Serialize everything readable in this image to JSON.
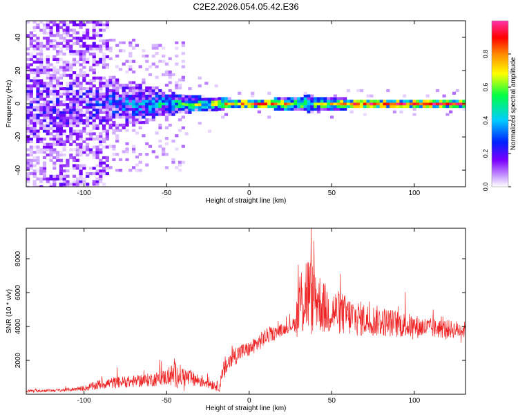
{
  "figure": {
    "title": "C2E2.2026.054.05.42.E36"
  },
  "chart_data": [
    {
      "type": "heatmap",
      "xlabel": "Height of straight line (km)",
      "ylabel": "Frequency (Hz)",
      "xlim": [
        -135,
        131
      ],
      "ylim": [
        -50,
        50
      ],
      "xticks": [
        -100,
        -50,
        0,
        50,
        100
      ],
      "yticks": [
        -40,
        -20,
        0,
        20,
        40
      ],
      "colorbar": {
        "label": "Normalized spectral amplitude",
        "range": [
          0,
          1
        ],
        "ticks": [
          0.0,
          0.2,
          0.4,
          0.6,
          0.8
        ],
        "tick_labels": [
          "0.0",
          "0.2",
          "0.4",
          "0.6",
          "0.8"
        ],
        "colormap": [
          "#ffffff",
          "#cda3ff",
          "#7b00ff",
          "#0022ff",
          "#00ccff",
          "#00ff44",
          "#ffff00",
          "#ff8800",
          "#ff0000",
          "#ff33aa"
        ]
      },
      "description_points": [
        {
          "x": -130,
          "band_hz": 50,
          "amplitude": 0.15
        },
        {
          "x": -100,
          "band_hz": 20,
          "amplitude": 0.2
        },
        {
          "x": -50,
          "band_hz": 6,
          "amplitude": 0.45
        },
        {
          "x": -25,
          "band_hz": 3,
          "amplitude": 0.6
        },
        {
          "x": 0,
          "band_hz": 1,
          "amplitude": 0.85
        },
        {
          "x": 35,
          "band_hz": 4,
          "amplitude": 0.55
        },
        {
          "x": 60,
          "band_hz": 2,
          "amplitude": 0.8
        },
        {
          "x": 100,
          "band_hz": 1,
          "amplitude": 0.9
        },
        {
          "x": 131,
          "band_hz": 1,
          "amplitude": 0.9
        }
      ],
      "grid": false
    },
    {
      "type": "line",
      "xlabel": "Height of straight line (km)",
      "ylabel": "SNR (10 * v/v)",
      "xlim": [
        -135,
        131
      ],
      "ylim": [
        0,
        9800
      ],
      "xticks": [
        -100,
        -50,
        0,
        50,
        100
      ],
      "yticks": [
        2000,
        4000,
        6000,
        8000
      ],
      "color": "#ee2222",
      "series": [
        {
          "x": [
            -135,
            -120,
            -110,
            -100,
            -95,
            -90,
            -80,
            -70,
            -60,
            -50,
            -45,
            -40,
            -35,
            -30,
            -25,
            -20,
            -18,
            -15,
            -10,
            -5,
            0,
            5,
            10,
            15,
            20,
            25,
            28,
            30,
            33,
            35,
            38,
            40,
            45,
            50,
            55,
            60,
            70,
            80,
            90,
            100,
            110,
            120,
            131
          ],
          "values": [
            200,
            220,
            260,
            350,
            450,
            600,
            700,
            750,
            850,
            1000,
            1150,
            1050,
            900,
            800,
            700,
            500,
            450,
            1500,
            2200,
            2500,
            2650,
            3000,
            3400,
            3600,
            3800,
            4000,
            4200,
            5200,
            5700,
            6100,
            5600,
            5800,
            5100,
            4900,
            4800,
            4600,
            4400,
            4300,
            4150,
            4000,
            3900,
            3850,
            3800
          ],
          "noise": [
            80,
            90,
            100,
            150,
            250,
            300,
            350,
            350,
            400,
            500,
            800,
            600,
            500,
            400,
            350,
            300,
            300,
            700,
            600,
            500,
            450,
            500,
            500,
            400,
            350,
            300,
            500,
            2200,
            2400,
            2600,
            2200,
            2000,
            1600,
            1400,
            1300,
            1200,
            1000,
            900,
            800,
            700,
            600,
            550,
            500
          ]
        }
      ],
      "grid": false
    }
  ]
}
